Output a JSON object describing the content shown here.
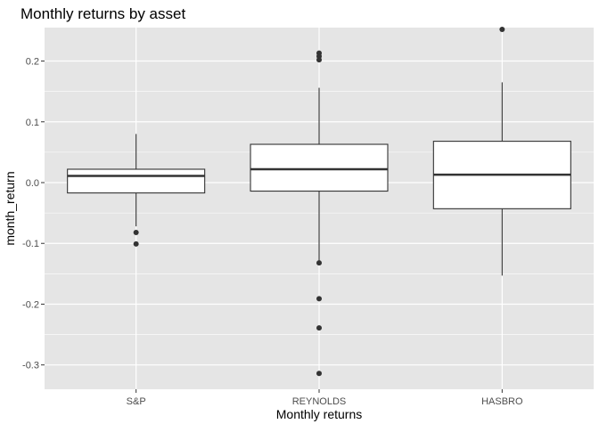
{
  "chart_data": {
    "type": "boxplot",
    "title": "Monthly returns by asset",
    "xlabel": "Monthly returns",
    "ylabel": "month_return",
    "ylim": [
      -0.34,
      0.255
    ],
    "yticks": [
      -0.3,
      -0.2,
      -0.1,
      0.0,
      0.1,
      0.2
    ],
    "ytick_labels": [
      "-0.3",
      "-0.2",
      "-0.1",
      "0.0",
      "0.1",
      "0.2"
    ],
    "categories": [
      "S&P",
      "REYNOLDS",
      "HASBRO"
    ],
    "grid": true,
    "legend": "none",
    "colors": {
      "panel": "#e5e5e5",
      "grid": "#ffffff",
      "box_fill": "#ffffff",
      "box_line": "#333333",
      "outlier": "#333333",
      "text": "#000000",
      "tick_text": "#4d4d4d"
    },
    "boxes": [
      {
        "category": "S&P",
        "whisker_low": -0.072,
        "q1": -0.017,
        "median": 0.011,
        "q3": 0.022,
        "whisker_high": 0.08,
        "outliers": [
          -0.082,
          -0.101
        ]
      },
      {
        "category": "REYNOLDS",
        "whisker_low": -0.13,
        "q1": -0.014,
        "median": 0.022,
        "q3": 0.063,
        "whisker_high": 0.156,
        "outliers": [
          0.213,
          0.208,
          0.202,
          -0.132,
          -0.191,
          -0.239,
          -0.314
        ]
      },
      {
        "category": "HASBRO",
        "whisker_low": -0.153,
        "q1": -0.043,
        "median": 0.013,
        "q3": 0.068,
        "whisker_high": 0.165,
        "outliers": [
          0.252
        ]
      }
    ]
  }
}
